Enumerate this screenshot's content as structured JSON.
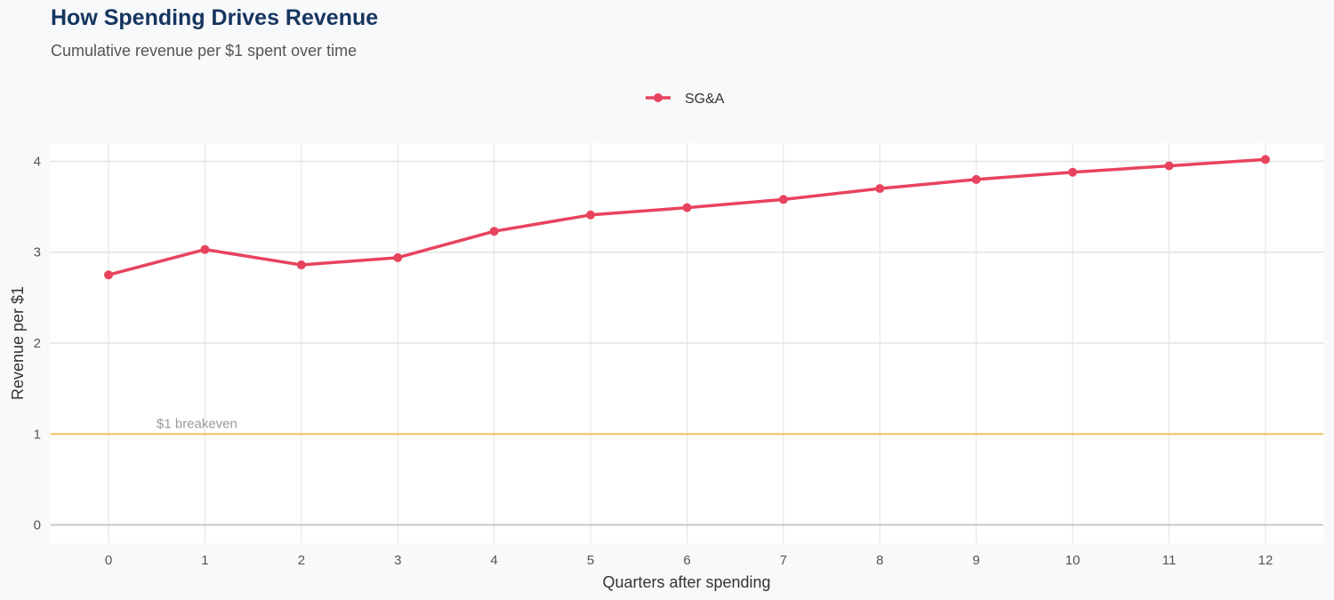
{
  "chart_data": {
    "type": "line",
    "title": "How Spending Drives Revenue",
    "subtitle": "Cumulative revenue per $1 spent over time",
    "xlabel": "Quarters after spending",
    "ylabel": "Revenue per $1",
    "x": [
      0,
      1,
      2,
      3,
      4,
      5,
      6,
      7,
      8,
      9,
      10,
      11,
      12
    ],
    "xlim": [
      -0.6,
      12.6
    ],
    "ylim": [
      -0.2,
      4.2
    ],
    "yticks": [
      0,
      1,
      2,
      3,
      4
    ],
    "grid": true,
    "legend_position": "top",
    "series": [
      {
        "name": "SG&A",
        "color": "#e8435e",
        "values": [
          2.75,
          3.03,
          2.86,
          2.94,
          3.23,
          3.41,
          3.49,
          3.58,
          3.7,
          3.8,
          3.88,
          3.95,
          4.02
        ]
      }
    ],
    "reference_line": {
      "y": 1,
      "label": "$1 breakeven",
      "color": "#f5c35a"
    }
  }
}
